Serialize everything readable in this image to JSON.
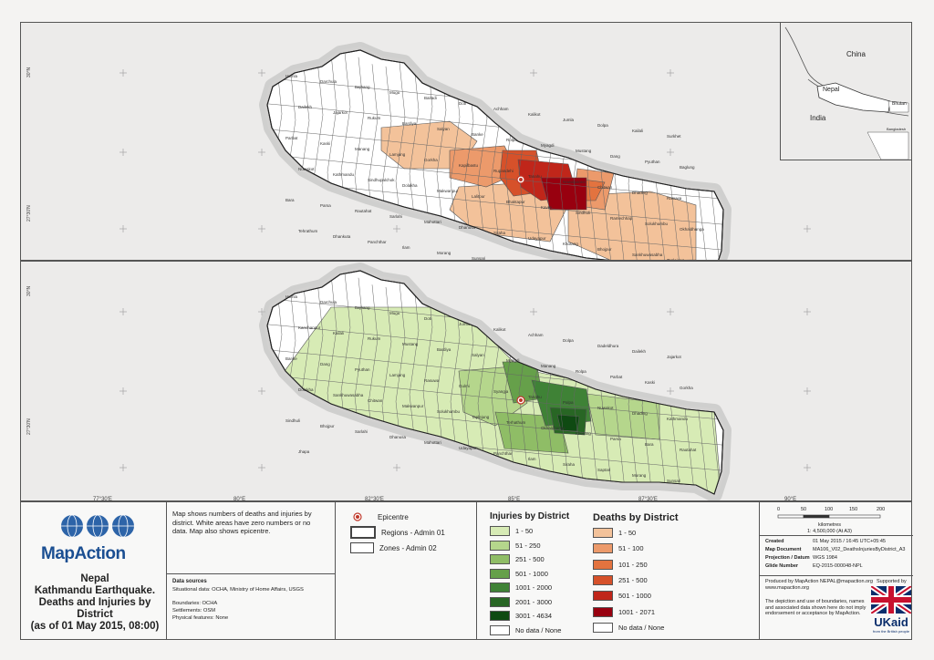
{
  "map_id": "MA106",
  "top_map": {
    "inset": {
      "labels": [
        "China",
        "Nepal",
        "India",
        "Bhutan",
        "Bangladesh"
      ]
    },
    "lat_labels": [
      "30°N",
      "27°30'N"
    ],
    "district_labels": [
      "Humla",
      "Darchula",
      "Bajhang",
      "Mugu",
      "Baitadi",
      "Doti",
      "Achham",
      "Kalikot",
      "Jumla",
      "Dolpa",
      "Kailali",
      "Surkhet",
      "Dailekh",
      "Jajarkot",
      "Rukum",
      "Bardiya",
      "Salyan",
      "Banke",
      "Rolpa",
      "Myagdi",
      "Mustang",
      "Dang",
      "Pyuthan",
      "Baglung",
      "Parbat",
      "Kaski",
      "Manang",
      "Lamjung",
      "Gorkha",
      "Kapilbastu",
      "Rupandehi",
      "Tanahu",
      "Nawalparasi",
      "Chitwan",
      "Dhading",
      "Rasuwa",
      "Nuwakot",
      "Kathmandu",
      "Sindhupalchok",
      "Dolakha",
      "Makwanpur",
      "Lalitpur",
      "Bhaktapur",
      "Kavre",
      "Sindhuli",
      "Ramechhap",
      "Solukhumbu",
      "Okhaldhunga",
      "Bara",
      "Parsa",
      "Rautahat",
      "Sarlahi",
      "Mahottari",
      "Dhanusa",
      "Siraha",
      "Udayapur",
      "Khotang",
      "Bhojpur",
      "Sankhuwasabha",
      "Taplejung",
      "Tehrathum",
      "Dhankuta",
      "Panchthar",
      "Ilam",
      "Morang",
      "Sunsari",
      "Saptari",
      "Jhapa"
    ]
  },
  "bottom_map": {
    "lat_labels": [
      "30°N",
      "27°30'N"
    ],
    "district_labels": [
      "Humla",
      "Darchula",
      "Bajhang",
      "Mugu",
      "Doti",
      "Jumla",
      "Kalikot",
      "Achham",
      "Dolpa",
      "Dadeldhura",
      "Dailekh",
      "Jajarkot",
      "Kanchanpur",
      "Kailali",
      "Rukum",
      "Mustang",
      "Bardiya",
      "Salyan",
      "Myagdi",
      "Manang",
      "Rolpa",
      "Parbat",
      "Kaski",
      "Gorkha",
      "Banke",
      "Dang",
      "Pyuthan",
      "Lamjung",
      "Rasuwa",
      "Gulmi",
      "Syangja",
      "Tanahu",
      "Palpa",
      "Nuwakot",
      "Dhading",
      "Kathmandu",
      "Dolakha",
      "Sankhuwasabha",
      "Chitwan",
      "Makwanpur",
      "Solukhumbu",
      "Taplejung",
      "Terhathum",
      "Okhaldhunga",
      "Khotang",
      "Parsa",
      "Bara",
      "Rautahat",
      "Sindhuli",
      "Bhojpur",
      "Sarlahi",
      "Dhanusa",
      "Mahottari",
      "Udayapur",
      "Panchthar",
      "Ilam",
      "Siraha",
      "Saptari",
      "Morang",
      "Sunsari",
      "Jhapa"
    ]
  },
  "lon_labels": [
    "77°30'E",
    "80°E",
    "82°30'E",
    "85°E",
    "87°30'E",
    "90°E"
  ],
  "legend": {
    "org": "MapAction",
    "title_lines": [
      "Nepal",
      "Kathmandu Earthquake.",
      "Deaths and Injuries by",
      "District",
      "(as of 01 May 2015, 08:00)"
    ],
    "description": "Map shows numbers of deaths and injuries by district.  White areas have zero numbers or no data.  Map also shows epicentre.",
    "data_sources_title": "Data sources",
    "data_sources": [
      "Situational data: OCHA, Ministry of Home Affairs, USGS",
      "Boundaries: OCHA",
      "Settlements: OSM",
      "Physical features: None"
    ],
    "symbols": [
      {
        "label": "Epicentre"
      },
      {
        "label": "Regions - Admin 01"
      },
      {
        "label": "Zones - Admin 02"
      }
    ],
    "injuries_title": "Injuries by District",
    "injuries_classes": [
      {
        "label": "1 - 50",
        "color": "#d7ebb5"
      },
      {
        "label": "51 - 250",
        "color": "#b5d68c"
      },
      {
        "label": "251 - 500",
        "color": "#8fbd66"
      },
      {
        "label": "501 - 1000",
        "color": "#66a04a"
      },
      {
        "label": "1001 - 2000",
        "color": "#3f8236"
      },
      {
        "label": "2001 - 3000",
        "color": "#286624"
      },
      {
        "label": "3001 - 4634",
        "color": "#0f4a12"
      },
      {
        "label": "No data / None",
        "color": "#ffffff"
      }
    ],
    "deaths_title": "Deaths by District",
    "deaths_classes": [
      {
        "label": "1 - 50",
        "color": "#f3c29a"
      },
      {
        "label": "51 - 100",
        "color": "#ec9a6b"
      },
      {
        "label": "101 - 250",
        "color": "#e3733f"
      },
      {
        "label": "251 - 500",
        "color": "#d6512a"
      },
      {
        "label": "501 - 1000",
        "color": "#c0261a"
      },
      {
        "label": "1001 - 2071",
        "color": "#98000f"
      },
      {
        "label": "No data / None",
        "color": "#ffffff"
      }
    ],
    "scale": {
      "ticks": [
        "0",
        "50",
        "100",
        "150",
        "200"
      ],
      "unit": "kilometres",
      "ratio": "1: 4,500,000 (At A3)"
    },
    "meta": [
      {
        "key": "Created",
        "value": "01 May 2015 / 16:45 UTC+05:45"
      },
      {
        "key": "Map Document",
        "value": "MA106_V02_DeathsInjuriesByDistrict_A3"
      },
      {
        "key": "Projection / Datum",
        "value": "WGS 1984"
      },
      {
        "key": "Glide Number",
        "value": "EQ-2015-000048-NPL"
      }
    ],
    "produced_by": "Produced by MapAction NEPAL@mapaction.org",
    "website": "www.mapaction.org",
    "supported_by": "Supported by",
    "disclaimer": "The depiction and use of boundaries, names and associated data shown here do not imply endorsement or acceptance by MapAction.",
    "ukaid_text": "UKaid",
    "ukaid_sub": "from the British people"
  }
}
